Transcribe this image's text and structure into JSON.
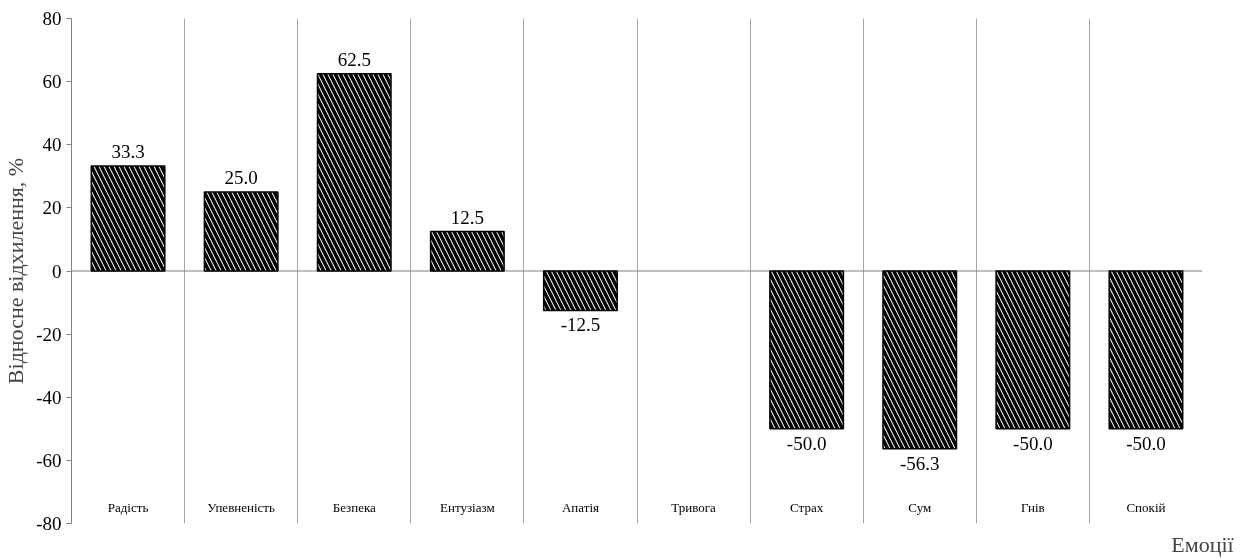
{
  "chart_data": {
    "type": "bar",
    "xlabel": "Емоції",
    "ylabel": "Відносне відхилення, %",
    "categories": [
      "Радість",
      "Упевненість",
      "Безпека",
      "Ентузіазм",
      "Апатія",
      "Тривога",
      "Страх",
      "Сум",
      "Гнів",
      "Спокій"
    ],
    "values": [
      33.3,
      25.0,
      62.5,
      12.5,
      -12.5,
      null,
      -50.0,
      -56.3,
      -50.0,
      -50.0
    ],
    "value_labels": [
      "33.3",
      "25.0",
      "62.5",
      "12.5",
      "-12.5",
      null,
      "-50.0",
      "-56.3",
      "-50.0",
      "-50.0"
    ],
    "color": "#000000",
    "ylim": [
      -80,
      80
    ],
    "yticks": [
      -80,
      -60,
      -40,
      -20,
      0,
      20,
      40,
      60,
      80
    ],
    "grid": "x"
  }
}
